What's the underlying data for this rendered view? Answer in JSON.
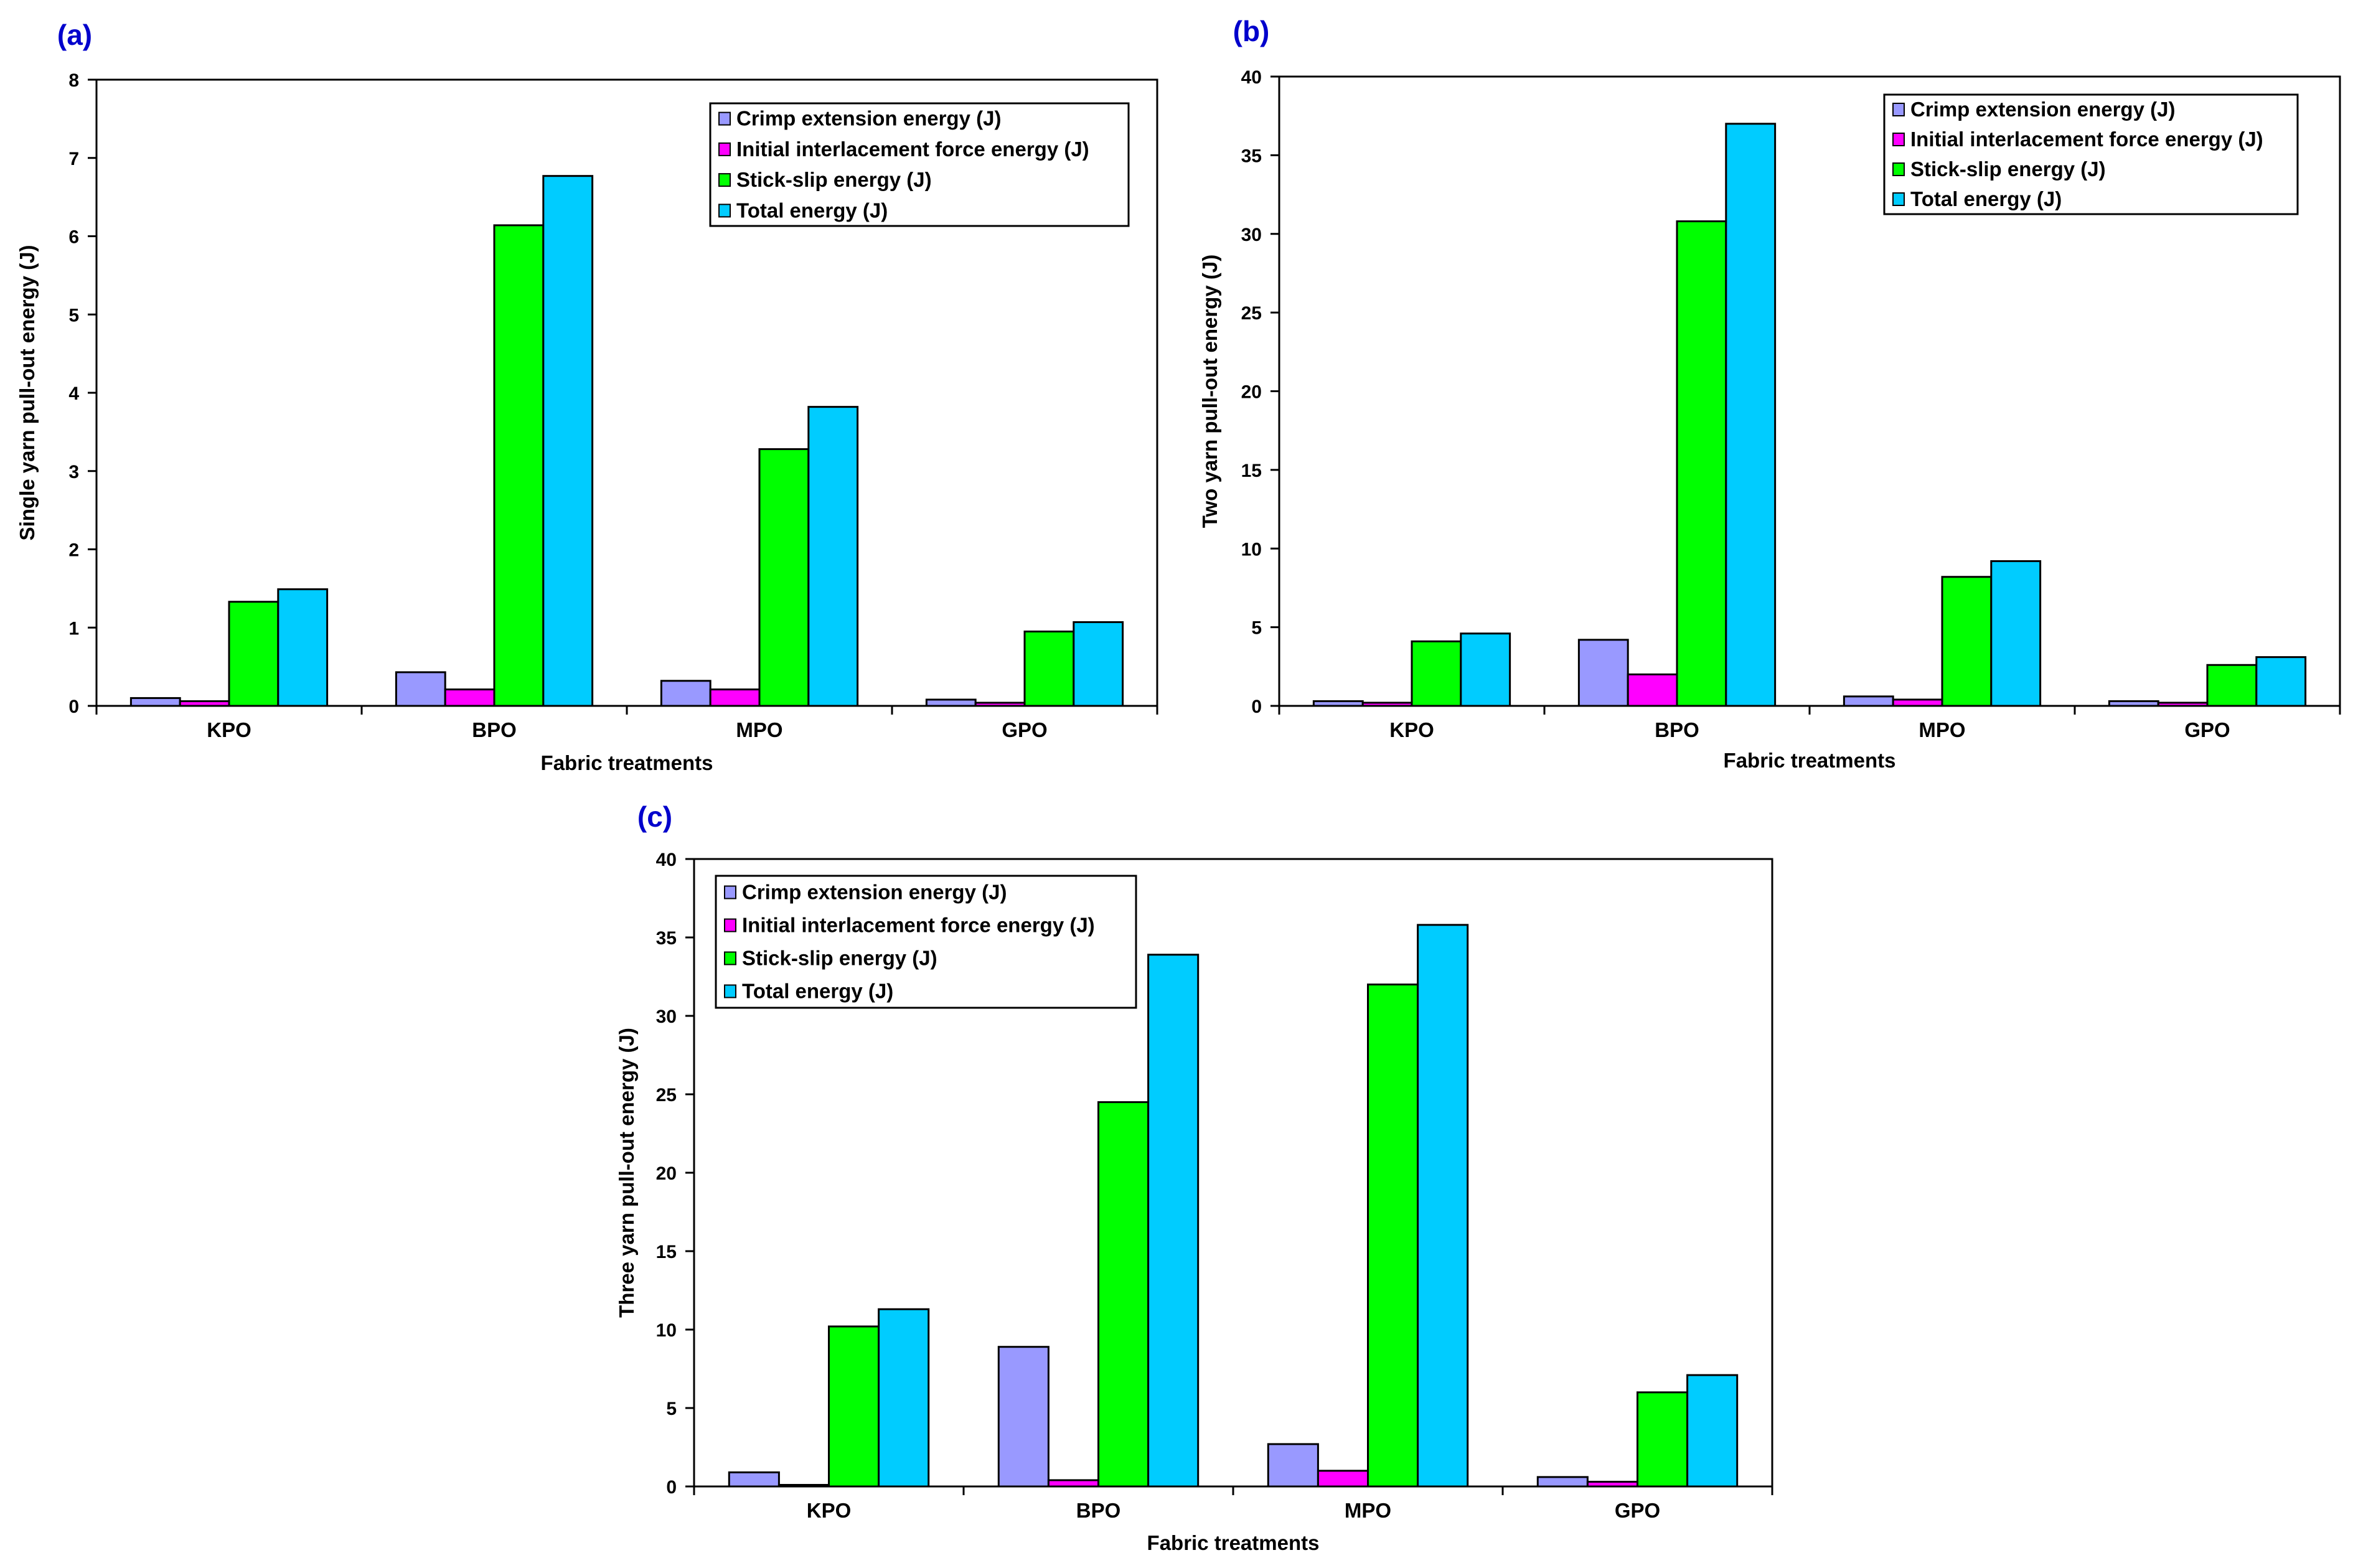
{
  "series_colors": [
    "#9999ff",
    "#ff00ff",
    "#00ff00",
    "#00ccff"
  ],
  "chart_data": [
    {
      "panel": "(a)",
      "type": "bar",
      "categories": [
        "KPO",
        "BPO",
        "MPO",
        "GPO"
      ],
      "xlabel": "Fabric treatments",
      "ylabel": "Single yarn pull-out energy (J)",
      "ylim": [
        0,
        8
      ],
      "yticks": [
        0,
        1,
        2,
        3,
        4,
        5,
        6,
        7,
        8
      ],
      "legend_position": "top-right",
      "series": [
        {
          "name": "Crimp extension energy (J)",
          "values": [
            0.1,
            0.43,
            0.32,
            0.08
          ]
        },
        {
          "name": "Initial interlacement force energy (J)",
          "values": [
            0.06,
            0.21,
            0.21,
            0.04
          ]
        },
        {
          "name": "Stick-slip energy (J)",
          "values": [
            1.33,
            6.14,
            3.28,
            0.95
          ]
        },
        {
          "name": "Total energy (J)",
          "values": [
            1.49,
            6.77,
            3.82,
            1.07
          ]
        }
      ]
    },
    {
      "panel": "(b)",
      "type": "bar",
      "categories": [
        "KPO",
        "BPO",
        "MPO",
        "GPO"
      ],
      "xlabel": "Fabric treatments",
      "ylabel": "Two yarn pull-out energy (J)",
      "ylim": [
        0,
        40
      ],
      "yticks": [
        0,
        5,
        10,
        15,
        20,
        25,
        30,
        35,
        40
      ],
      "legend_position": "top-right",
      "series": [
        {
          "name": "Crimp extension energy (J)",
          "values": [
            0.3,
            4.2,
            0.6,
            0.3
          ]
        },
        {
          "name": "Initial interlacement force energy (J)",
          "values": [
            0.2,
            2.0,
            0.4,
            0.2
          ]
        },
        {
          "name": "Stick-slip energy (J)",
          "values": [
            4.1,
            30.8,
            8.2,
            2.6
          ]
        },
        {
          "name": "Total energy (J)",
          "values": [
            4.6,
            37.0,
            9.2,
            3.1
          ]
        }
      ]
    },
    {
      "panel": "(c)",
      "type": "bar",
      "categories": [
        "KPO",
        "BPO",
        "MPO",
        "GPO"
      ],
      "xlabel": "Fabric treatments",
      "ylabel": "Three yarn pull-out energy (J)",
      "ylim": [
        0,
        40
      ],
      "yticks": [
        0,
        5,
        10,
        15,
        20,
        25,
        30,
        35,
        40
      ],
      "legend_position": "top-left",
      "series": [
        {
          "name": "Crimp extension energy (J)",
          "values": [
            0.9,
            8.9,
            2.7,
            0.6
          ]
        },
        {
          "name": "Initial interlacement force energy (J)",
          "values": [
            0.1,
            0.4,
            1.0,
            0.3
          ]
        },
        {
          "name": "Stick-slip energy (J)",
          "values": [
            10.2,
            24.5,
            32.0,
            6.0
          ]
        },
        {
          "name": "Total energy (J)",
          "values": [
            11.3,
            33.9,
            35.8,
            7.1
          ]
        }
      ]
    }
  ]
}
